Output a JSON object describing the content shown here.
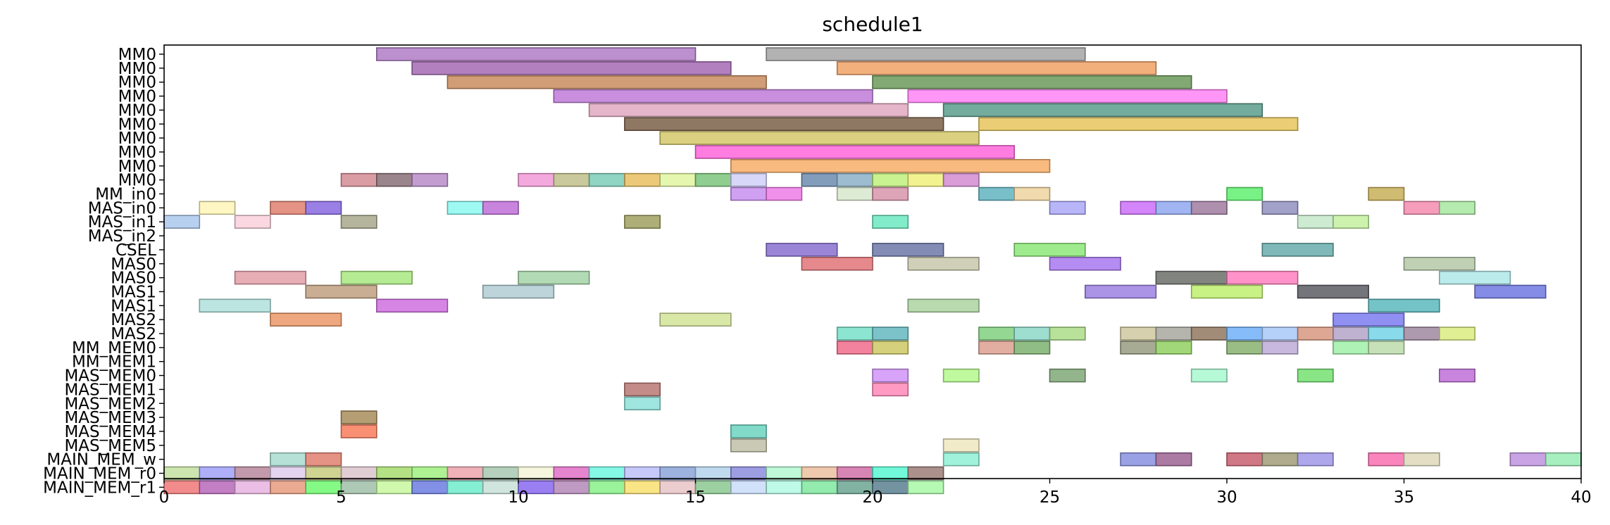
{
  "chart_data": {
    "type": "gantt",
    "title": "schedule1",
    "xlabel": "",
    "ylabel": "",
    "xlim": [
      0,
      40
    ],
    "x_ticks": [
      0,
      5,
      10,
      15,
      20,
      25,
      30,
      35,
      40
    ],
    "grid": false,
    "rows": [
      "MM0",
      "MM0",
      "MM0",
      "MM0",
      "MM0",
      "MM0",
      "MM0",
      "MM0",
      "MM0",
      "MM0",
      "MM_in0",
      "MAS_in0",
      "MAS_in1",
      "MAS_in2",
      "CSEL",
      "MAS0",
      "MAS0",
      "MAS1",
      "MAS1",
      "MAS2",
      "MAS2",
      "MM_MEM0",
      "MM_MEM1",
      "MAS_MEM0",
      "MAS_MEM1",
      "MAS_MEM2",
      "MAS_MEM3",
      "MAS_MEM4",
      "MAS_MEM5",
      "MAIN_MEM_w",
      "MAIN_MEM_r0",
      "MAIN_MEM_r1"
    ],
    "tasks": [
      {
        "row": 0,
        "start": 6,
        "end": 15,
        "color": "#b07cc6"
      },
      {
        "row": 0,
        "start": 17,
        "end": 26,
        "color": "#a5a5a5"
      },
      {
        "row": 1,
        "start": 7,
        "end": 16,
        "color": "#a468b4"
      },
      {
        "row": 1,
        "start": 19,
        "end": 28,
        "color": "#f0a266"
      },
      {
        "row": 2,
        "start": 8,
        "end": 17,
        "color": "#c98c5e"
      },
      {
        "row": 2,
        "start": 20,
        "end": 29,
        "color": "#6c9a5a"
      },
      {
        "row": 3,
        "start": 11,
        "end": 20,
        "color": "#c07bd8"
      },
      {
        "row": 3,
        "start": 21,
        "end": 30,
        "color": "#ff82f6"
      },
      {
        "row": 4,
        "start": 12,
        "end": 21,
        "color": "#e0a8c0"
      },
      {
        "row": 4,
        "start": 22,
        "end": 31,
        "color": "#5a9c8c"
      },
      {
        "row": 5,
        "start": 13,
        "end": 22,
        "color": "#7a6048"
      },
      {
        "row": 5,
        "start": 23,
        "end": 32,
        "color": "#e6c45c"
      },
      {
        "row": 6,
        "start": 14,
        "end": 23,
        "color": "#d4c86a"
      },
      {
        "row": 7,
        "start": 15,
        "end": 24,
        "color": "#ff66dc"
      },
      {
        "row": 8,
        "start": 16,
        "end": 25,
        "color": "#f8ae68"
      },
      {
        "row": 9,
        "start": 5,
        "end": 6,
        "color": "#d48c94"
      },
      {
        "row": 9,
        "start": 6,
        "end": 7,
        "color": "#8a7078"
      },
      {
        "row": 9,
        "start": 7,
        "end": 8,
        "color": "#b88cc8"
      },
      {
        "row": 9,
        "start": 10,
        "end": 11,
        "color": "#f29ad8"
      },
      {
        "row": 9,
        "start": 11,
        "end": 12,
        "color": "#c0c08c"
      },
      {
        "row": 9,
        "start": 12,
        "end": 13,
        "color": "#7ccdb8"
      },
      {
        "row": 9,
        "start": 13,
        "end": 14,
        "color": "#e8c060"
      },
      {
        "row": 9,
        "start": 14,
        "end": 15,
        "color": "#e0f5a0"
      },
      {
        "row": 9,
        "start": 15,
        "end": 16,
        "color": "#7cc47c"
      },
      {
        "row": 9,
        "start": 16,
        "end": 17,
        "color": "#d0d0f8"
      },
      {
        "row": 9,
        "start": 18,
        "end": 19,
        "color": "#6c8cb0"
      },
      {
        "row": 9,
        "start": 19,
        "end": 20,
        "color": "#8cb0c8"
      },
      {
        "row": 9,
        "start": 20,
        "end": 21,
        "color": "#c0f07c"
      },
      {
        "row": 9,
        "start": 21,
        "end": 22,
        "color": "#f0f07c"
      },
      {
        "row": 9,
        "start": 22,
        "end": 23,
        "color": "#d48cd0"
      },
      {
        "row": 10,
        "start": 16,
        "end": 17,
        "color": "#c890f0"
      },
      {
        "row": 10,
        "start": 17,
        "end": 18,
        "color": "#ee7ce8"
      },
      {
        "row": 10,
        "start": 19,
        "end": 20,
        "color": "#d8e8cc"
      },
      {
        "row": 10,
        "start": 20,
        "end": 21,
        "color": "#d894ac"
      },
      {
        "row": 10,
        "start": 23,
        "end": 24,
        "color": "#60b4c0"
      },
      {
        "row": 10,
        "start": 24,
        "end": 25,
        "color": "#eed4a0"
      },
      {
        "row": 10,
        "start": 30,
        "end": 31,
        "color": "#60f070"
      },
      {
        "row": 10,
        "start": 34,
        "end": 35,
        "color": "#c8b058"
      },
      {
        "row": 11,
        "start": 1,
        "end": 2,
        "color": "#fff6b8"
      },
      {
        "row": 11,
        "start": 3,
        "end": 4,
        "color": "#e08070"
      },
      {
        "row": 11,
        "start": 4,
        "end": 5,
        "color": "#8868e0"
      },
      {
        "row": 11,
        "start": 8,
        "end": 9,
        "color": "#8cf8f0"
      },
      {
        "row": 11,
        "start": 9,
        "end": 10,
        "color": "#c070d8"
      },
      {
        "row": 11,
        "start": 25,
        "end": 26,
        "color": "#aca8f8"
      },
      {
        "row": 11,
        "start": 27,
        "end": 28,
        "color": "#cc70f8"
      },
      {
        "row": 11,
        "start": 28,
        "end": 29,
        "color": "#90a8f0"
      },
      {
        "row": 11,
        "start": 29,
        "end": 30,
        "color": "#a07ca0"
      },
      {
        "row": 11,
        "start": 31,
        "end": 32,
        "color": "#9090c0"
      },
      {
        "row": 11,
        "start": 35,
        "end": 36,
        "color": "#f48cb0"
      },
      {
        "row": 11,
        "start": 36,
        "end": 37,
        "color": "#a8e8a0"
      },
      {
        "row": 12,
        "start": 0,
        "end": 1,
        "color": "#acc8ec"
      },
      {
        "row": 12,
        "start": 2,
        "end": 3,
        "color": "#fad0dc"
      },
      {
        "row": 12,
        "start": 5,
        "end": 6,
        "color": "#a8a88c"
      },
      {
        "row": 12,
        "start": 13,
        "end": 14,
        "color": "#a0a060"
      },
      {
        "row": 12,
        "start": 20,
        "end": 21,
        "color": "#6ce8c0"
      },
      {
        "row": 12,
        "start": 32,
        "end": 33,
        "color": "#c4e8c8"
      },
      {
        "row": 12,
        "start": 33,
        "end": 34,
        "color": "#c4f0a0"
      },
      {
        "row": 14,
        "start": 17,
        "end": 19,
        "color": "#8870d0"
      },
      {
        "row": 14,
        "start": 20,
        "end": 22,
        "color": "#6c78a8"
      },
      {
        "row": 14,
        "start": 24,
        "end": 26,
        "color": "#8ce878"
      },
      {
        "row": 14,
        "start": 31,
        "end": 33,
        "color": "#68acac"
      },
      {
        "row": 15,
        "start": 18,
        "end": 20,
        "color": "#e07478"
      },
      {
        "row": 15,
        "start": 21,
        "end": 23,
        "color": "#c8c8ac"
      },
      {
        "row": 15,
        "start": 25,
        "end": 27,
        "color": "#a878f0"
      },
      {
        "row": 15,
        "start": 35,
        "end": 37,
        "color": "#b4c8a8"
      },
      {
        "row": 16,
        "start": 2,
        "end": 4,
        "color": "#e4a0a8"
      },
      {
        "row": 16,
        "start": 5,
        "end": 7,
        "color": "#a8e880"
      },
      {
        "row": 16,
        "start": 10,
        "end": 12,
        "color": "#a4d4a8"
      },
      {
        "row": 16,
        "start": 28,
        "end": 30,
        "color": "#6c7068"
      },
      {
        "row": 16,
        "start": 30,
        "end": 32,
        "color": "#ff80c0"
      },
      {
        "row": 16,
        "start": 36,
        "end": 38,
        "color": "#b0e8e8"
      },
      {
        "row": 17,
        "start": 4,
        "end": 6,
        "color": "#c0a080"
      },
      {
        "row": 17,
        "start": 9,
        "end": 11,
        "color": "#b0ccd4"
      },
      {
        "row": 17,
        "start": 26,
        "end": 28,
        "color": "#9c80e0"
      },
      {
        "row": 17,
        "start": 29,
        "end": 31,
        "color": "#c0f070"
      },
      {
        "row": 17,
        "start": 32,
        "end": 34,
        "color": "#5c5c64"
      },
      {
        "row": 17,
        "start": 37,
        "end": 39,
        "color": "#7078e0"
      },
      {
        "row": 18,
        "start": 1,
        "end": 3,
        "color": "#b0e0dc"
      },
      {
        "row": 18,
        "start": 6,
        "end": 8,
        "color": "#d070e0"
      },
      {
        "row": 18,
        "start": 21,
        "end": 23,
        "color": "#acd4a0"
      },
      {
        "row": 18,
        "start": 34,
        "end": 36,
        "color": "#5cb8bc"
      },
      {
        "row": 19,
        "start": 3,
        "end": 5,
        "color": "#ec9868"
      },
      {
        "row": 19,
        "start": 14,
        "end": 16,
        "color": "#d4e498"
      },
      {
        "row": 19,
        "start": 33,
        "end": 35,
        "color": "#7c7cf0"
      },
      {
        "row": 20,
        "start": 19,
        "end": 20,
        "color": "#78e0c8"
      },
      {
        "row": 20,
        "start": 20,
        "end": 21,
        "color": "#64b8c0"
      },
      {
        "row": 20,
        "start": 23,
        "end": 24,
        "color": "#80d080"
      },
      {
        "row": 20,
        "start": 24,
        "end": 25,
        "color": "#8cd8c8"
      },
      {
        "row": 20,
        "start": 25,
        "end": 26,
        "color": "#acdc88"
      },
      {
        "row": 20,
        "start": 27,
        "end": 28,
        "color": "#d0c8a0"
      },
      {
        "row": 20,
        "start": 28,
        "end": 29,
        "color": "#a8a8a0"
      },
      {
        "row": 20,
        "start": 29,
        "end": 30,
        "color": "#907860"
      },
      {
        "row": 20,
        "start": 30,
        "end": 31,
        "color": "#70b0f8"
      },
      {
        "row": 20,
        "start": 31,
        "end": 32,
        "color": "#a8c8f8"
      },
      {
        "row": 20,
        "start": 32,
        "end": 33,
        "color": "#d89880"
      },
      {
        "row": 20,
        "start": 33,
        "end": 34,
        "color": "#b4a4c8"
      },
      {
        "row": 20,
        "start": 34,
        "end": 35,
        "color": "#74d4e8"
      },
      {
        "row": 20,
        "start": 35,
        "end": 36,
        "color": "#a088a0"
      },
      {
        "row": 20,
        "start": 36,
        "end": 37,
        "color": "#dcec80"
      },
      {
        "row": 21,
        "start": 19,
        "end": 20,
        "color": "#f06c8c"
      },
      {
        "row": 21,
        "start": 20,
        "end": 21,
        "color": "#ccc864"
      },
      {
        "row": 21,
        "start": 23,
        "end": 24,
        "color": "#dca090"
      },
      {
        "row": 21,
        "start": 24,
        "end": 25,
        "color": "#7cb070"
      },
      {
        "row": 21,
        "start": 27,
        "end": 28,
        "color": "#989c80"
      },
      {
        "row": 21,
        "start": 28,
        "end": 29,
        "color": "#90d060"
      },
      {
        "row": 21,
        "start": 30,
        "end": 31,
        "color": "#88b070"
      },
      {
        "row": 21,
        "start": 31,
        "end": 32,
        "color": "#c0acd8"
      },
      {
        "row": 21,
        "start": 33,
        "end": 34,
        "color": "#a0f0a8"
      },
      {
        "row": 21,
        "start": 34,
        "end": 35,
        "color": "#bcdcac"
      },
      {
        "row": 23,
        "start": 20,
        "end": 21,
        "color": "#d094f8"
      },
      {
        "row": 23,
        "start": 22,
        "end": 23,
        "color": "#b4f88c"
      },
      {
        "row": 23,
        "start": 25,
        "end": 26,
        "color": "#80a878"
      },
      {
        "row": 23,
        "start": 29,
        "end": 30,
        "color": "#a8f8d0"
      },
      {
        "row": 23,
        "start": 32,
        "end": 33,
        "color": "#74e070"
      },
      {
        "row": 23,
        "start": 36,
        "end": 37,
        "color": "#c070d8"
      },
      {
        "row": 24,
        "start": 13,
        "end": 14,
        "color": "#b87874"
      },
      {
        "row": 24,
        "start": 20,
        "end": 21,
        "color": "#ff88b8"
      },
      {
        "row": 25,
        "start": 13,
        "end": 14,
        "color": "#8ce0d8"
      },
      {
        "row": 26,
        "start": 5,
        "end": 6,
        "color": "#a88c5c"
      },
      {
        "row": 27,
        "start": 5,
        "end": 6,
        "color": "#f87c5c"
      },
      {
        "row": 27,
        "start": 16,
        "end": 17,
        "color": "#6cd4c0"
      },
      {
        "row": 28,
        "start": 16,
        "end": 17,
        "color": "#c0c0a8"
      },
      {
        "row": 28,
        "start": 22,
        "end": 23,
        "color": "#f0e8c0"
      },
      {
        "row": 29,
        "start": 35,
        "end": 36,
        "color": "#f8b0a0"
      },
      {
        "row": 29,
        "start": 3,
        "end": 4,
        "color": "#a8dcd0"
      },
      {
        "row": 29,
        "start": 4,
        "end": 5,
        "color": "#e08070"
      },
      {
        "row": 29,
        "start": 22,
        "end": 23,
        "color": "#90f0d4"
      },
      {
        "row": 29,
        "start": 27,
        "end": 28,
        "color": "#8890e0"
      },
      {
        "row": 29,
        "start": 28,
        "end": 29,
        "color": "#9c6494"
      },
      {
        "row": 29,
        "start": 30,
        "end": 31,
        "color": "#c86070"
      },
      {
        "row": 29,
        "start": 31,
        "end": 32,
        "color": "#a09c78"
      },
      {
        "row": 29,
        "start": 32,
        "end": 33,
        "color": "#a098e8"
      },
      {
        "row": 29,
        "start": 34,
        "end": 35,
        "color": "#f870b0"
      },
      {
        "row": 29,
        "start": 35,
        "end": 36,
        "color": "#e0e4c8"
      },
      {
        "row": 29,
        "start": 38,
        "end": 39,
        "color": "#c094e0"
      },
      {
        "row": 29,
        "start": 39,
        "end": 40,
        "color": "#98ecb4"
      },
      {
        "row": 30,
        "start": 0,
        "end": 1,
        "color": "#c4e0a0"
      },
      {
        "row": 30,
        "start": 1,
        "end": 2,
        "color": "#a0a0f8"
      },
      {
        "row": 30,
        "start": 2,
        "end": 3,
        "color": "#b8889c"
      },
      {
        "row": 30,
        "start": 3,
        "end": 4,
        "color": "#e0ccec"
      },
      {
        "row": 30,
        "start": 4,
        "end": 5,
        "color": "#c8cc80"
      },
      {
        "row": 30,
        "start": 5,
        "end": 6,
        "color": "#dcc4cc"
      },
      {
        "row": 30,
        "start": 6,
        "end": 7,
        "color": "#a8dc70"
      },
      {
        "row": 30,
        "start": 7,
        "end": 8,
        "color": "#a0f080"
      },
      {
        "row": 30,
        "start": 8,
        "end": 9,
        "color": "#eca4ac"
      },
      {
        "row": 30,
        "start": 9,
        "end": 10,
        "color": "#a8c8b0"
      },
      {
        "row": 30,
        "start": 10,
        "end": 11,
        "color": "#f4f4d8"
      },
      {
        "row": 30,
        "start": 11,
        "end": 12,
        "color": "#e070c8"
      },
      {
        "row": 30,
        "start": 12,
        "end": 13,
        "color": "#70f8e0"
      },
      {
        "row": 30,
        "start": 13,
        "end": 14,
        "color": "#bcc0f8"
      },
      {
        "row": 30,
        "start": 14,
        "end": 15,
        "color": "#8ca4d8"
      },
      {
        "row": 30,
        "start": 15,
        "end": 16,
        "color": "#b4d4ec"
      },
      {
        "row": 30,
        "start": 16,
        "end": 17,
        "color": "#8c8cdc"
      },
      {
        "row": 30,
        "start": 17,
        "end": 18,
        "color": "#b4f8d0"
      },
      {
        "row": 30,
        "start": 18,
        "end": 19,
        "color": "#ecc0a0"
      },
      {
        "row": 30,
        "start": 19,
        "end": 20,
        "color": "#d070a8"
      },
      {
        "row": 30,
        "start": 20,
        "end": 21,
        "color": "#58f8d4"
      },
      {
        "row": 30,
        "start": 21,
        "end": 22,
        "color": "#9c7c78"
      },
      {
        "row": 31,
        "start": 0,
        "end": 1,
        "color": "#f07878"
      },
      {
        "row": 31,
        "start": 1,
        "end": 2,
        "color": "#b868b8"
      },
      {
        "row": 31,
        "start": 2,
        "end": 3,
        "color": "#e8b4e0"
      },
      {
        "row": 31,
        "start": 3,
        "end": 4,
        "color": "#e89c80"
      },
      {
        "row": 31,
        "start": 4,
        "end": 5,
        "color": "#70f870"
      },
      {
        "row": 31,
        "start": 5,
        "end": 6,
        "color": "#a0c0a8"
      },
      {
        "row": 31,
        "start": 6,
        "end": 7,
        "color": "#c8f8a0"
      },
      {
        "row": 31,
        "start": 7,
        "end": 8,
        "color": "#6c7ce0"
      },
      {
        "row": 31,
        "start": 8,
        "end": 9,
        "color": "#70eccc"
      },
      {
        "row": 31,
        "start": 9,
        "end": 10,
        "color": "#c8e0d8"
      },
      {
        "row": 31,
        "start": 10,
        "end": 11,
        "color": "#8868f0"
      },
      {
        "row": 31,
        "start": 11,
        "end": 12,
        "color": "#b488b8"
      },
      {
        "row": 31,
        "start": 12,
        "end": 13,
        "color": "#88f088"
      },
      {
        "row": 31,
        "start": 13,
        "end": 14,
        "color": "#f8e070"
      },
      {
        "row": 31,
        "start": 14,
        "end": 15,
        "color": "#e8c4c8"
      },
      {
        "row": 31,
        "start": 15,
        "end": 16,
        "color": "#8cc890"
      },
      {
        "row": 31,
        "start": 16,
        "end": 17,
        "color": "#c8dcf8"
      },
      {
        "row": 31,
        "start": 17,
        "end": 18,
        "color": "#b4f8e4"
      },
      {
        "row": 31,
        "start": 18,
        "end": 19,
        "color": "#80e8a0"
      },
      {
        "row": 31,
        "start": 19,
        "end": 20,
        "color": "#6ca490"
      },
      {
        "row": 31,
        "start": 20,
        "end": 21,
        "color": "#5c8090"
      },
      {
        "row": 31,
        "start": 21,
        "end": 22,
        "color": "#a8f8a8"
      }
    ]
  }
}
